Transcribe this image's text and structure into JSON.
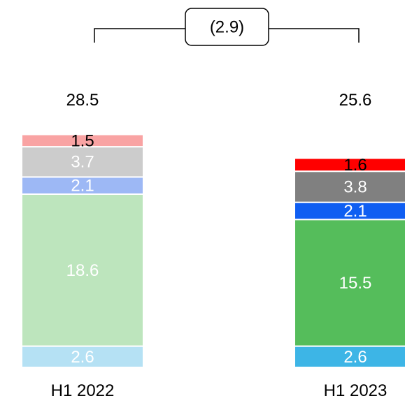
{
  "chart_data": {
    "type": "bar",
    "stacked": true,
    "categories": [
      "H1 2022",
      "H1 2023"
    ],
    "totals": [
      "28.5",
      "25.6"
    ],
    "delta_label": "(2.9)",
    "series": [
      {
        "values": [
          2.6,
          2.6
        ],
        "labels": [
          "2.6",
          "2.6"
        ],
        "colors": [
          "#b5e1f4",
          "#3db5e6"
        ],
        "label_colors": [
          "#ffffff",
          "#ffffff"
        ]
      },
      {
        "values": [
          18.6,
          15.5
        ],
        "labels": [
          "18.6",
          "15.5"
        ],
        "colors": [
          "#bde5bd",
          "#55bd5b"
        ],
        "label_colors": [
          "#ffffff",
          "#ffffff"
        ]
      },
      {
        "values": [
          2.1,
          2.1
        ],
        "labels": [
          "2.1",
          "2.1"
        ],
        "colors": [
          "#9db8f5",
          "#0f5ef2"
        ],
        "label_colors": [
          "#ffffff",
          "#ffffff"
        ]
      },
      {
        "values": [
          3.7,
          3.8
        ],
        "labels": [
          "3.7",
          "3.8"
        ],
        "colors": [
          "#cccccc",
          "#808080"
        ],
        "label_colors": [
          "#ffffff",
          "#ffffff"
        ]
      },
      {
        "values": [
          1.5,
          1.6
        ],
        "labels": [
          "1.5",
          "1.6"
        ],
        "colors": [
          "#f9a3a3",
          "#ff0000"
        ],
        "label_colors": [
          "#000000",
          "#000000"
        ]
      }
    ]
  }
}
